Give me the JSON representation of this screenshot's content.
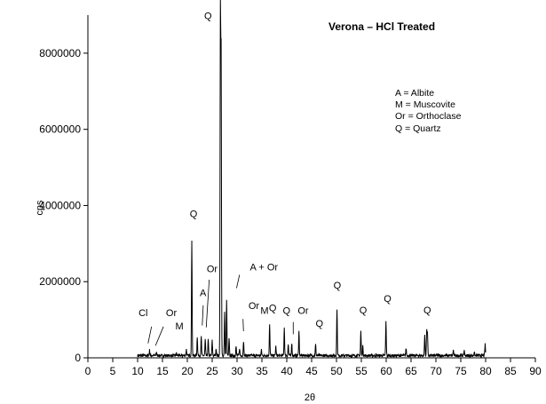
{
  "chart_data": {
    "type": "line",
    "title": "Verona – HCl Treated",
    "xlabel": "2θ",
    "ylabel": "cps",
    "xlim": [
      0,
      90
    ],
    "ylim": [
      0,
      9000000
    ],
    "x_ticks": [
      0,
      5,
      10,
      15,
      20,
      25,
      30,
      35,
      40,
      45,
      50,
      55,
      60,
      65,
      70,
      75,
      80,
      85,
      90
    ],
    "y_ticks": [
      0,
      2000000,
      4000000,
      6000000,
      8000000
    ],
    "x_tick_labels": [
      "0",
      "5",
      "10",
      "15",
      "20",
      "25",
      "30",
      "35",
      "40",
      "45",
      "50",
      "55",
      "60",
      "65",
      "70",
      "75",
      "80",
      "85",
      "90"
    ],
    "y_tick_labels": [
      "0",
      "2000000",
      "4000000",
      "6000000",
      "8000000"
    ],
    "grid": false,
    "legend": {
      "placement": "top-right",
      "entries": [
        "A = Albite",
        "M = Muscovite",
        "Or = Orthoclase",
        "Q = Quartz"
      ]
    },
    "series": [
      {
        "peaks": [
          [
            12.4,
            200000
          ],
          [
            13.8,
            150000
          ],
          [
            17.8,
            120000
          ],
          [
            19.8,
            220000
          ],
          [
            20.9,
            3100000
          ],
          [
            22.0,
            560000
          ],
          [
            22.8,
            550000
          ],
          [
            23.6,
            480000
          ],
          [
            24.2,
            480000
          ],
          [
            25.0,
            450000
          ],
          [
            25.8,
            250000
          ],
          [
            26.65,
            9000000
          ],
          [
            26.8,
            7800000
          ],
          [
            27.5,
            1200000
          ],
          [
            27.9,
            1500000
          ],
          [
            28.4,
            500000
          ],
          [
            29.8,
            300000
          ],
          [
            30.5,
            250000
          ],
          [
            31.3,
            450000
          ],
          [
            34.9,
            200000
          ],
          [
            36.55,
            900000
          ],
          [
            37.8,
            300000
          ],
          [
            39.5,
            800000
          ],
          [
            40.3,
            350000
          ],
          [
            41.0,
            400000
          ],
          [
            42.45,
            700000
          ],
          [
            45.8,
            350000
          ],
          [
            50.1,
            1300000
          ],
          [
            54.9,
            700000
          ],
          [
            55.3,
            300000
          ],
          [
            59.95,
            950000
          ],
          [
            64.0,
            250000
          ],
          [
            67.75,
            600000
          ],
          [
            68.15,
            700000
          ],
          [
            68.3,
            650000
          ],
          [
            73.5,
            200000
          ],
          [
            75.7,
            200000
          ],
          [
            77.7,
            150000
          ],
          [
            79.9,
            350000
          ]
        ],
        "baseline": 60000,
        "x_range": [
          10,
          80
        ]
      }
    ],
    "annotations": [
      {
        "text": "Q",
        "x": 23.4,
        "y": 8900000
      },
      {
        "text": "Q",
        "x": 20.5,
        "y": 3700000
      },
      {
        "text": "Or",
        "x": 23.9,
        "y": 2250000
      },
      {
        "text": "A",
        "x": 22.5,
        "y": 1620000
      },
      {
        "text": "A + Or",
        "x": 32.6,
        "y": 2300000
      },
      {
        "text": "Cl",
        "x": 10.2,
        "y": 1100000
      },
      {
        "text": "Or",
        "x": 15.7,
        "y": 1100000
      },
      {
        "text": "M",
        "x": 17.6,
        "y": 750000
      },
      {
        "text": "Or",
        "x": 32.3,
        "y": 1280000
      },
      {
        "text": "M",
        "x": 34.7,
        "y": 1150000
      },
      {
        "text": "Q",
        "x": 36.4,
        "y": 1220000
      },
      {
        "text": "Q",
        "x": 39.2,
        "y": 1150000
      },
      {
        "text": "Or",
        "x": 42.2,
        "y": 1150000
      },
      {
        "text": "Q",
        "x": 45.8,
        "y": 820000
      },
      {
        "text": "Q",
        "x": 49.4,
        "y": 1820000
      },
      {
        "text": "Q",
        "x": 54.6,
        "y": 1170000
      },
      {
        "text": "Q",
        "x": 59.5,
        "y": 1470000
      },
      {
        "text": "Q",
        "x": 67.5,
        "y": 1170000
      }
    ],
    "leader_lines": [
      {
        "from": [
          12.8,
          820000
        ],
        "to": [
          12.1,
          380000
        ]
      },
      {
        "from": [
          15.2,
          820000
        ],
        "to": [
          13.6,
          320000
        ]
      },
      {
        "from": [
          23.2,
          1380000
        ],
        "to": [
          23.0,
          850000
        ]
      },
      {
        "from": [
          24.4,
          2050000
        ],
        "to": [
          23.8,
          800000
        ]
      },
      {
        "from": [
          30.5,
          2180000
        ],
        "to": [
          29.9,
          1830000
        ]
      },
      {
        "from": [
          31.2,
          1020000
        ],
        "to": [
          31.3,
          700000
        ]
      },
      {
        "from": [
          41.3,
          940000
        ],
        "to": [
          41.3,
          620000
        ]
      }
    ],
    "line_color": "#000000"
  }
}
